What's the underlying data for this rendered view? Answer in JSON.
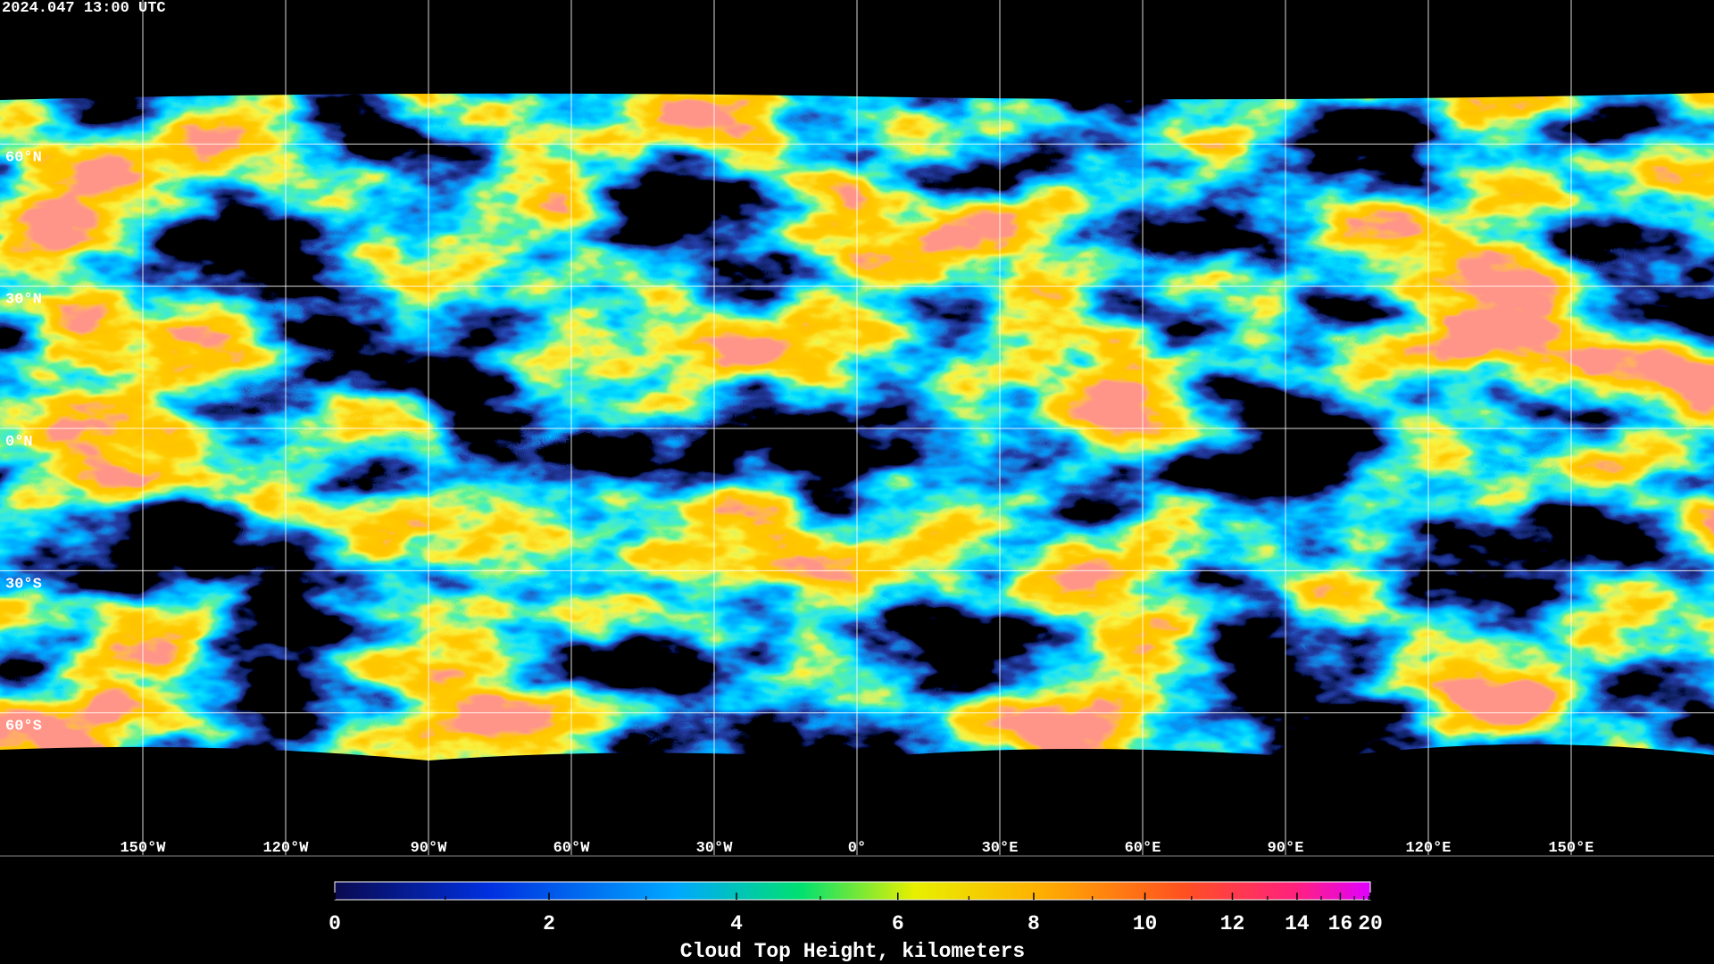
{
  "map": {
    "timestamp": "2024.047 13:00 UTC",
    "latitudes": [
      {
        "value": 60,
        "label": "60°N"
      },
      {
        "value": 30,
        "label": "30°N"
      },
      {
        "value": 0,
        "label": "0°N"
      },
      {
        "value": -30,
        "label": "30°S"
      },
      {
        "value": -60,
        "label": "60°S"
      }
    ],
    "longitudes": [
      {
        "value": -150,
        "label": "150°W"
      },
      {
        "value": -120,
        "label": "120°W"
      },
      {
        "value": -90,
        "label": "90°W"
      },
      {
        "value": -60,
        "label": "60°W"
      },
      {
        "value": -30,
        "label": "30°W"
      },
      {
        "value": 0,
        "label": "0°"
      },
      {
        "value": 30,
        "label": "30°E"
      },
      {
        "value": 60,
        "label": "60°E"
      },
      {
        "value": 90,
        "label": "90°E"
      },
      {
        "value": 120,
        "label": "120°E"
      },
      {
        "value": 150,
        "label": "150°E"
      }
    ]
  },
  "colorbar": {
    "label": "Cloud Top Height, kilometers",
    "range": [
      0,
      20
    ],
    "ticks": [
      0,
      2,
      4,
      6,
      8,
      10,
      12,
      14,
      16,
      20
    ],
    "minor_ticks": [
      1,
      3,
      5,
      7,
      9,
      11,
      13,
      15,
      17,
      18,
      19
    ]
  }
}
